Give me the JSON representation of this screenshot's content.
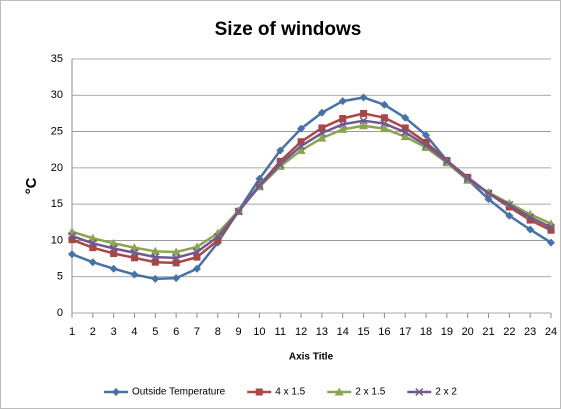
{
  "chart_data": {
    "type": "line",
    "title": "Size of windows",
    "y_label": "°C",
    "x_label": "Axis Title",
    "categories": [
      1,
      2,
      3,
      4,
      5,
      6,
      7,
      8,
      9,
      10,
      11,
      12,
      13,
      14,
      15,
      16,
      17,
      18,
      19,
      20,
      21,
      22,
      23,
      24
    ],
    "ylim": [
      0,
      35
    ],
    "yticks": [
      0,
      5,
      10,
      15,
      20,
      25,
      30,
      35
    ],
    "grid": true,
    "legend": "bottom",
    "series": [
      {
        "name": "Outside Temperature",
        "color": "#4572a7",
        "marker": "diamond",
        "values": [
          8.1,
          7.0,
          6.1,
          5.3,
          4.7,
          4.8,
          6.1,
          9.7,
          14.1,
          18.5,
          22.4,
          25.4,
          27.6,
          29.2,
          29.7,
          28.7,
          26.9,
          24.5,
          21.0,
          18.4,
          15.7,
          13.4,
          11.5,
          9.7
        ]
      },
      {
        "name": "4 x 1.5",
        "color": "#aa4643",
        "marker": "square",
        "values": [
          10.1,
          9.0,
          8.2,
          7.6,
          7.0,
          6.9,
          7.7,
          10.0,
          14.0,
          17.6,
          20.9,
          23.6,
          25.5,
          26.8,
          27.5,
          26.9,
          25.5,
          23.5,
          21.0,
          18.7,
          16.5,
          14.6,
          12.8,
          11.4
        ]
      },
      {
        "name": "2 x 1.5",
        "color": "#89a54e",
        "marker": "triangle",
        "values": [
          11.2,
          10.3,
          9.6,
          9.0,
          8.5,
          8.4,
          9.1,
          11.0,
          14.1,
          17.4,
          20.2,
          22.4,
          24.1,
          25.3,
          25.8,
          25.4,
          24.3,
          22.8,
          20.7,
          18.3,
          16.6,
          15.1,
          13.6,
          12.3
        ]
      },
      {
        "name": "2 x 2",
        "color": "#71588f",
        "marker": "x",
        "values": [
          10.6,
          9.6,
          8.9,
          8.3,
          7.7,
          7.6,
          8.4,
          10.5,
          14.0,
          17.5,
          20.5,
          23.0,
          24.8,
          26.0,
          26.5,
          26.1,
          24.9,
          23.1,
          20.9,
          18.5,
          16.5,
          14.9,
          13.2,
          11.8
        ]
      }
    ]
  }
}
